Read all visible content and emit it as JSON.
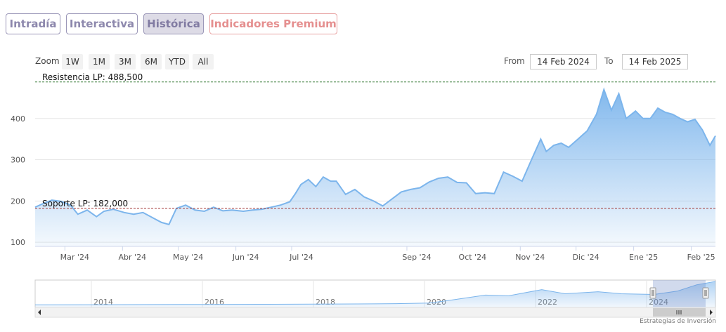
{
  "tabs": [
    {
      "label": "Intradía"
    },
    {
      "label": "Interactiva"
    },
    {
      "label": "Histórica"
    },
    {
      "label": "Indicadores Premium"
    }
  ],
  "zoom": {
    "label": "Zoom",
    "buttons": [
      "1W",
      "1M",
      "3M",
      "6M",
      "YTD",
      "All"
    ]
  },
  "range": {
    "from_label": "From",
    "from_value": "14 Feb 2024",
    "to_label": "To",
    "to_value": "14 Feb 2025"
  },
  "colors": {
    "line": "#7cb5ec",
    "resistance": "#3a7d3a",
    "support": "#a33a3a",
    "navigator_mask": "#6685c2"
  },
  "chart_data": {
    "type": "area",
    "series": [
      {
        "x": [
          "2024-02-14",
          "2024-02-19",
          "2024-02-23",
          "2024-02-28",
          "2024-03-04",
          "2024-03-08",
          "2024-03-13",
          "2024-03-18",
          "2024-03-22",
          "2024-03-27",
          "2024-04-02",
          "2024-04-07",
          "2024-04-12",
          "2024-04-17",
          "2024-04-22",
          "2024-04-26",
          "2024-04-30",
          "2024-05-05",
          "2024-05-10",
          "2024-05-15",
          "2024-05-20",
          "2024-05-25",
          "2024-05-30",
          "2024-06-05",
          "2024-06-10",
          "2024-06-15",
          "2024-06-20",
          "2024-06-25",
          "2024-06-30",
          "2024-07-03",
          "2024-07-06",
          "2024-07-10",
          "2024-07-14",
          "2024-07-18",
          "2024-07-22",
          "2024-07-25",
          "2024-07-30",
          "2024-08-04",
          "2024-08-09",
          "2024-08-14",
          "2024-08-19",
          "2024-08-24",
          "2024-08-29",
          "2024-09-03",
          "2024-09-08",
          "2024-09-13",
          "2024-09-18",
          "2024-09-23",
          "2024-09-28",
          "2024-10-03",
          "2024-10-08",
          "2024-10-13",
          "2024-10-18",
          "2024-10-23",
          "2024-10-28",
          "2024-11-02",
          "2024-11-07",
          "2024-11-12",
          "2024-11-15",
          "2024-11-19",
          "2024-11-23",
          "2024-11-27",
          "2024-12-02",
          "2024-12-07",
          "2024-12-12",
          "2024-12-16",
          "2024-12-20",
          "2024-12-24",
          "2024-12-28",
          "2025-01-02",
          "2025-01-06",
          "2025-01-10",
          "2025-01-14",
          "2025-01-18",
          "2025-01-22",
          "2025-01-26",
          "2025-01-30",
          "2025-02-03",
          "2025-02-07",
          "2025-02-11",
          "2025-02-14"
        ],
        "y": [
          185,
          195,
          202,
          199,
          190,
          168,
          178,
          162,
          175,
          180,
          172,
          168,
          172,
          160,
          148,
          143,
          182,
          190,
          178,
          175,
          185,
          176,
          178,
          175,
          178,
          180,
          185,
          190,
          198,
          218,
          240,
          252,
          235,
          258,
          248,
          248,
          216,
          228,
          210,
          200,
          188,
          205,
          222,
          228,
          232,
          246,
          255,
          258,
          245,
          244,
          218,
          220,
          218,
          270,
          260,
          248,
          300,
          350,
          320,
          335,
          340,
          330,
          350,
          370,
          410,
          470,
          420,
          460,
          400,
          418,
          400,
          400,
          425,
          415,
          410,
          400,
          392,
          398,
          372,
          335,
          358
        ]
      }
    ],
    "ylim": [
      90,
      500
    ],
    "yticks": [
      100,
      200,
      300,
      400
    ],
    "xtick_labels": [
      "Mar '24",
      "Abr '24",
      "May '24",
      "Jun '24",
      "Jul '24",
      "Sep '24",
      "Oct '24",
      "Nov '24",
      "Dic '24",
      "Ene '25",
      "Feb '25"
    ],
    "xtick_dates": [
      "2024-03-01",
      "2024-04-01",
      "2024-05-01",
      "2024-06-01",
      "2024-07-01",
      "2024-09-01",
      "2024-10-01",
      "2024-11-01",
      "2024-12-01",
      "2025-01-01",
      "2025-02-01"
    ],
    "annotations": [
      {
        "label": "Resistencia LP: 488,500",
        "value": 488.5
      },
      {
        "label": "Soporte LP: 182,000",
        "value": 182.0
      }
    ],
    "navigator": {
      "year_labels": [
        "2014",
        "2016",
        "2018",
        "2020",
        "2022",
        "2024"
      ],
      "x": [
        "2013-01",
        "2014-01",
        "2015-01",
        "2016-01",
        "2017-01",
        "2018-01",
        "2019-01",
        "2019-06",
        "2020-01",
        "2020-06",
        "2021-01",
        "2021-06",
        "2022-01",
        "2022-06",
        "2023-01",
        "2023-06",
        "2024-01",
        "2024-06",
        "2024-10",
        "2025-02"
      ],
      "y": [
        38,
        40,
        42,
        44,
        46,
        48,
        52,
        55,
        65,
        110,
        180,
        170,
        260,
        200,
        230,
        200,
        190,
        240,
        330,
        380
      ]
    }
  },
  "attribution": "Estrategias de Inversión"
}
